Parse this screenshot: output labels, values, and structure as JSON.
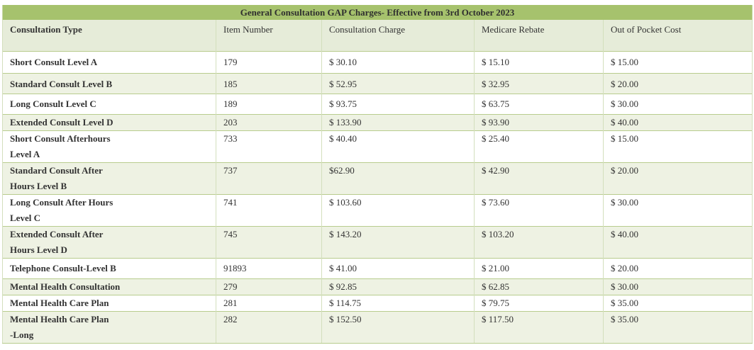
{
  "table": {
    "title": "General Consultation GAP Charges- Effective from 3rd October 2023",
    "headers": [
      "Consultation Type",
      "Item Number",
      "Consultation Charge",
      "Medicare Rebate",
      "Out of Pocket Cost"
    ],
    "rows": [
      {
        "type": [
          "Short Consult Level A"
        ],
        "item": "179",
        "charge": "$ 30.10",
        "rebate": "$ 15.10",
        "oop": "$ 15.00"
      },
      {
        "type": [
          "Standard Consult Level B"
        ],
        "item": "185",
        "charge": "$ 52.95",
        "rebate": "$ 32.95",
        "oop": "$ 20.00"
      },
      {
        "type": [
          "Long Consult Level C"
        ],
        "item": "189",
        "charge": "$ 93.75",
        "rebate": "$ 63.75",
        "oop": "$ 30.00"
      },
      {
        "type": [
          "Extended Consult Level D"
        ],
        "item": "203",
        "charge": "$ 133.90",
        "rebate": "$ 93.90",
        "oop": "$ 40.00"
      },
      {
        "type": [
          "Short Consult Afterhours",
          "Level A"
        ],
        "item": "733",
        "charge": "$ 40.40",
        "rebate": "$ 25.40",
        "oop": "$ 15.00"
      },
      {
        "type": [
          "Standard Consult After",
          "Hours Level B"
        ],
        "item": "737",
        "charge": "$62.90",
        "rebate": "$ 42.90",
        "oop": "$ 20.00"
      },
      {
        "type": [
          "Long Consult After Hours",
          "Level C"
        ],
        "item": "741",
        "charge": "$ 103.60",
        "rebate": "$ 73.60",
        "oop": "$ 30.00"
      },
      {
        "type": [
          "Extended Consult After",
          "Hours Level D"
        ],
        "item": "745",
        "charge": "$ 143.20",
        "rebate": "$ 103.20",
        "oop": "$ 40.00"
      },
      {
        "type": [
          "Telephone Consult-Level B"
        ],
        "item": "91893",
        "charge": "$ 41.00",
        "rebate": "$ 21.00",
        "oop": "$ 20.00"
      },
      {
        "type": [
          "Mental Health Consultation"
        ],
        "item": "279",
        "charge": "$ 92.85",
        "rebate": "$ 62.85",
        "oop": "$ 30.00"
      },
      {
        "type": [
          "Mental Health Care Plan"
        ],
        "item": "281",
        "charge": "$ 114.75",
        "rebate": "$ 79.75",
        "oop": "$ 35.00"
      },
      {
        "type": [
          "Mental Health Care Plan",
          "-Long"
        ],
        "item": "282",
        "charge": "$ 152.50",
        "rebate": "$ 117.50",
        "oop": "$ 35.00"
      }
    ]
  }
}
